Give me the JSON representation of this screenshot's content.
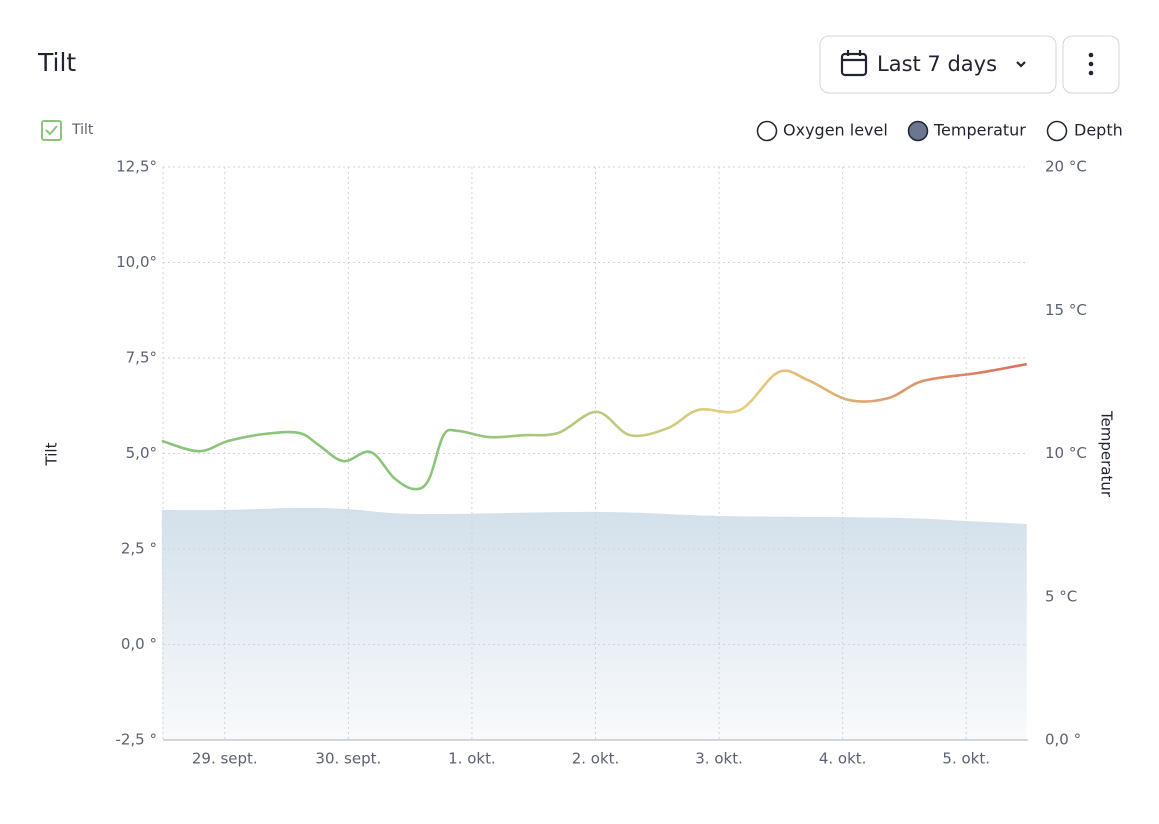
{
  "header": {
    "title": "Tilt",
    "range_button": "Last 7 days"
  },
  "controls": {
    "sensors": [
      "Oxygen level",
      "Depth"
    ]
  },
  "chart_data": {
    "type": "line",
    "ylabel": "Tilt",
    "y2label": "Temperatur",
    "grid": true,
    "xlim": [
      -0.5,
      6.5
    ],
    "xticks": [
      {
        "value": 0,
        "label": "29. sept."
      },
      {
        "value": 1,
        "label": "30. sept."
      },
      {
        "value": 2,
        "label": "1. okt."
      },
      {
        "value": 3,
        "label": "2. okt."
      },
      {
        "value": 4,
        "label": "3. okt."
      },
      {
        "value": 5,
        "label": "4. okt."
      },
      {
        "value": 6,
        "label": "5. okt."
      }
    ],
    "ylim": [
      -2.5,
      12.5
    ],
    "yticks": [
      {
        "value": -2.5,
        "label": "-2,5 °"
      },
      {
        "value": 0,
        "label": "0,0 °"
      },
      {
        "value": 2.5,
        "label": "2,5 °"
      },
      {
        "value": 5,
        "label": "5,0°"
      },
      {
        "value": 7.5,
        "label": "7,5°"
      },
      {
        "value": 10,
        "label": "10,0°"
      },
      {
        "value": 12.5,
        "label": "12,5°"
      }
    ],
    "y2lim": [
      0,
      20
    ],
    "y2ticks": [
      {
        "value": 0,
        "label": "0,0 °"
      },
      {
        "value": 5,
        "label": "5 °C"
      },
      {
        "value": 10,
        "label": "10 °C"
      },
      {
        "value": 15,
        "label": "15 °C"
      },
      {
        "value": 20,
        "label": "20 °C"
      }
    ],
    "series": [
      {
        "name": "Tilt",
        "colors": [
          "#8cc47c",
          "#8cc47c",
          "#e6cf7f",
          "#d6705c"
        ],
        "x": [
          -0.51,
          -0.21,
          0.03,
          0.32,
          0.6,
          0.76,
          0.96,
          1.18,
          1.37,
          1.53,
          1.65,
          1.77,
          1.89,
          2.14,
          2.42,
          2.7,
          3.01,
          3.28,
          3.59,
          3.83,
          4.17,
          4.48,
          4.72,
          5.05,
          5.37,
          5.65,
          6.1,
          6.49
        ],
        "values": [
          5.33,
          5.06,
          5.33,
          5.51,
          5.54,
          5.22,
          4.8,
          5.04,
          4.36,
          4.07,
          4.31,
          5.48,
          5.59,
          5.43,
          5.48,
          5.54,
          6.09,
          5.48,
          5.67,
          6.14,
          6.14,
          7.13,
          6.92,
          6.4,
          6.45,
          6.9,
          7.11,
          7.34
        ]
      },
      {
        "name": "Temperatur",
        "axis": "y2",
        "color": "#d3e0ea",
        "x": [
          -0.51,
          0.0,
          0.6,
          1.0,
          1.58,
          3.04,
          4.01,
          5.46,
          6.02,
          6.49
        ],
        "values": [
          8.03,
          8.03,
          8.1,
          8.06,
          7.89,
          7.96,
          7.82,
          7.75,
          7.64,
          7.54
        ]
      }
    ]
  }
}
